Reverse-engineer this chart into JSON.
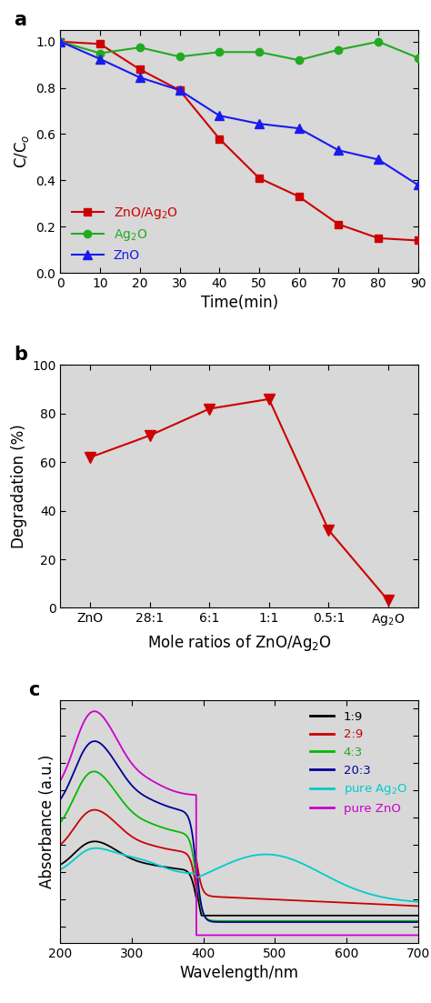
{
  "panel_a": {
    "time": [
      0,
      10,
      20,
      30,
      40,
      50,
      60,
      70,
      80,
      90
    ],
    "ZnO_Ag2O": [
      1.0,
      0.99,
      0.88,
      0.79,
      0.58,
      0.41,
      0.33,
      0.21,
      0.15,
      0.14
    ],
    "Ag2O": [
      1.0,
      0.95,
      0.975,
      0.935,
      0.955,
      0.955,
      0.92,
      0.965,
      1.0,
      0.93
    ],
    "ZnO": [
      1.0,
      0.925,
      0.845,
      0.79,
      0.68,
      0.645,
      0.625,
      0.53,
      0.49,
      0.38
    ],
    "colors": {
      "ZnO_Ag2O": "#cc0000",
      "Ag2O": "#22aa22",
      "ZnO": "#1a1aee"
    },
    "ylabel": "C/C$_o$",
    "xlabel": "Time(min)",
    "xlim": [
      0,
      90
    ],
    "ylim": [
      0.0,
      1.05
    ],
    "yticks": [
      0.0,
      0.2,
      0.4,
      0.6,
      0.8,
      1.0
    ],
    "xticks": [
      0,
      10,
      20,
      30,
      40,
      50,
      60,
      70,
      80,
      90
    ],
    "label": "a",
    "bg_color": "#d8d8d8"
  },
  "panel_b": {
    "x_labels": [
      "ZnO",
      "28:1",
      "6:1",
      "1:1",
      "0.5:1",
      "Ag$_2$O"
    ],
    "y_values": [
      62,
      71,
      82,
      86,
      32,
      3
    ],
    "color": "#cc0000",
    "ylabel": "Degradation (%)",
    "xlabel": "Mole ratios of ZnO/Ag$_2$O",
    "ylim": [
      0,
      100
    ],
    "yticks": [
      0,
      20,
      40,
      60,
      80,
      100
    ],
    "label": "b",
    "bg_color": "#d8d8d8"
  },
  "panel_c": {
    "xlabel": "Wavelength/nm",
    "ylabel": "Absorbance (a.u.)",
    "xlim": [
      200,
      700
    ],
    "xticks": [
      200,
      300,
      400,
      500,
      600,
      700
    ],
    "label": "c",
    "legend": [
      "1:9",
      "2:9",
      "4:3",
      "20:3",
      "pure Ag$_2$O",
      "pure ZnO"
    ],
    "legend_colors": [
      "#000000",
      "#cc0000",
      "#00bb00",
      "#000099",
      "#00cccc",
      "#cc00cc"
    ],
    "legend_text_colors": [
      "#000000",
      "#cc0000",
      "#22aa22",
      "#000099",
      "#00cccc",
      "#cc00cc"
    ],
    "bg_color": "#d8d8d8"
  }
}
